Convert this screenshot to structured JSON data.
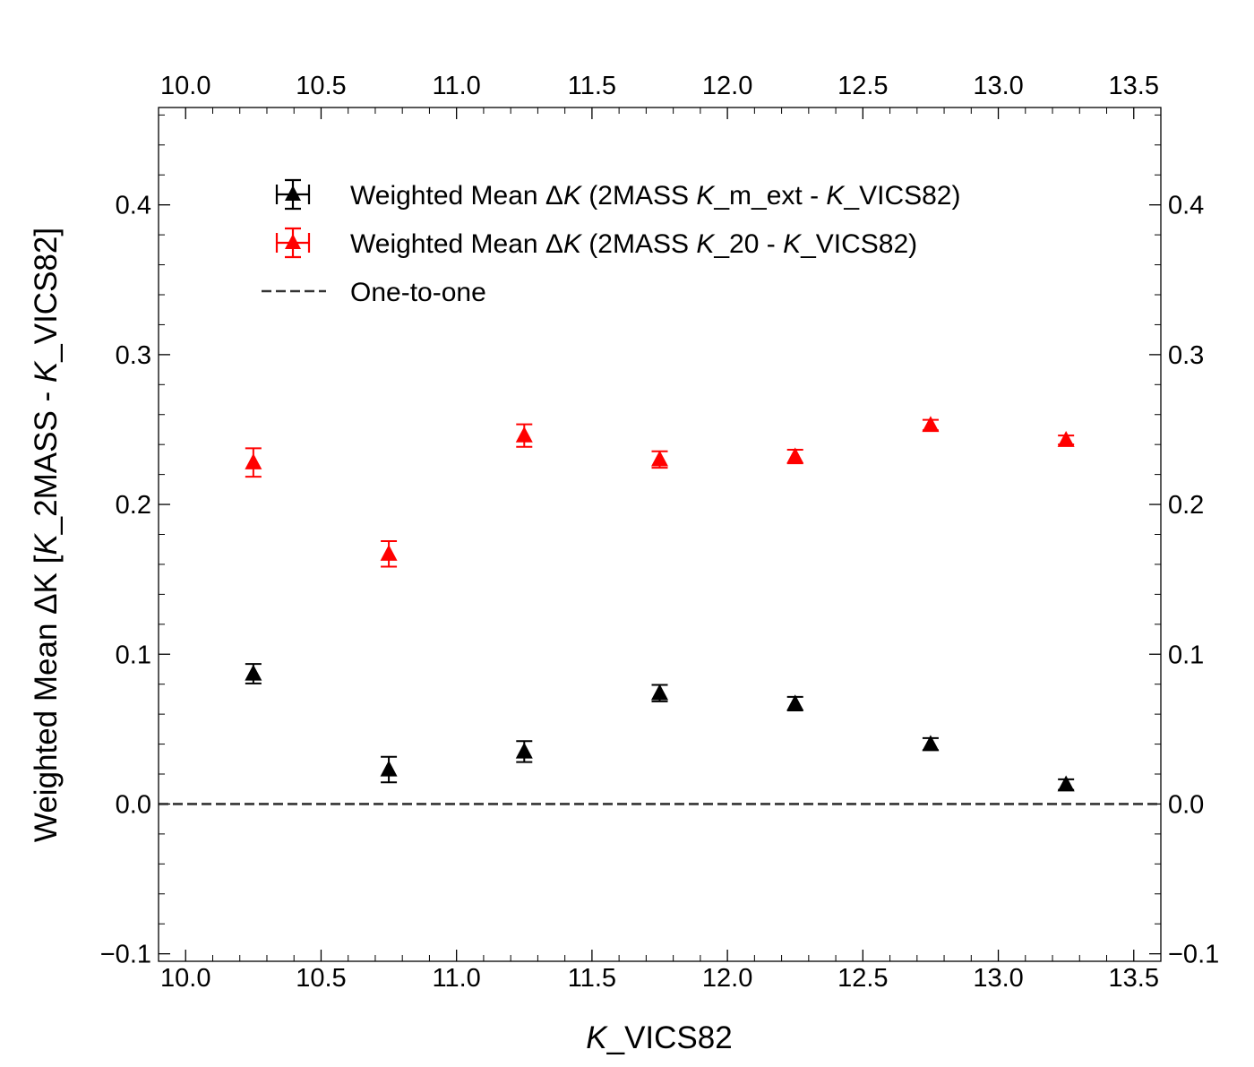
{
  "chart_data": {
    "type": "scatter",
    "xlabel": {
      "italic": "K",
      "rest": "_VICS82"
    },
    "ylabel": {
      "pre": "Weighted Mean ΔK [",
      "k1": "K",
      "mid": "_2MASS - ",
      "k2": "K",
      "post": "_VICS82]"
    },
    "xlim": [
      9.9,
      13.6
    ],
    "ylim": [
      -0.105,
      0.465
    ],
    "x_ticks": [
      10.0,
      10.5,
      11.0,
      11.5,
      12.0,
      12.5,
      13.0,
      13.5
    ],
    "x_tick_labels": [
      "10.0",
      "10.5",
      "11.0",
      "11.5",
      "12.0",
      "12.5",
      "13.0",
      "13.5"
    ],
    "y_ticks": [
      -0.1,
      0.0,
      0.1,
      0.2,
      0.3,
      0.4
    ],
    "y_tick_labels": [
      "−0.1",
      "0.0",
      "0.1",
      "0.2",
      "0.3",
      "0.4"
    ],
    "series": [
      {
        "name": "Weighted Mean ΔK (2MASS K_m_ext - K_VICS82)",
        "legend_parts": [
          "Weighted Mean Δ",
          "K",
          " (2MASS ",
          "K",
          "_m_ext - ",
          "K",
          "_VICS82)"
        ],
        "color": "#000000",
        "marker": "triangle",
        "x": [
          10.25,
          10.75,
          11.25,
          11.75,
          12.25,
          12.75,
          13.25
        ],
        "y": [
          0.087,
          0.023,
          0.035,
          0.074,
          0.067,
          0.04,
          0.013
        ],
        "yerr": [
          0.0065,
          0.0085,
          0.007,
          0.0055,
          0.0045,
          0.004,
          0.0035
        ]
      },
      {
        "name": "Weighted Mean ΔK (2MASS K_20 - K_VICS82)",
        "legend_parts": [
          "Weighted Mean Δ",
          "K",
          " (2MASS ",
          "K",
          "_20 - ",
          "K",
          "_VICS82)"
        ],
        "color": "#ff0000",
        "marker": "triangle",
        "x": [
          10.25,
          10.75,
          11.25,
          11.75,
          12.25,
          12.75,
          13.25
        ],
        "y": [
          0.228,
          0.167,
          0.246,
          0.23,
          0.232,
          0.253,
          0.243
        ],
        "yerr": [
          0.0095,
          0.0085,
          0.0075,
          0.0055,
          0.0045,
          0.0035,
          0.003
        ]
      }
    ],
    "reference_line": {
      "name": "One-to-one",
      "y": 0.0,
      "style": "dashed",
      "color": "#333333"
    },
    "legend_position": "top-left"
  }
}
